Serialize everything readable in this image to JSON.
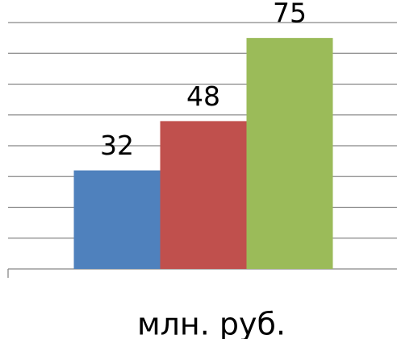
{
  "chart_data": {
    "type": "bar",
    "categories": [
      "млн. руб."
    ],
    "series": [
      {
        "color": "#4f81bd",
        "values": [
          32
        ]
      },
      {
        "color": "#c0504d",
        "values": [
          48
        ]
      },
      {
        "color": "#9bbb59",
        "values": [
          75
        ]
      }
    ],
    "ylim": [
      0,
      80
    ],
    "yticks": [
      0,
      10,
      20,
      30,
      40,
      50,
      60,
      70,
      80
    ],
    "grid": true
  }
}
